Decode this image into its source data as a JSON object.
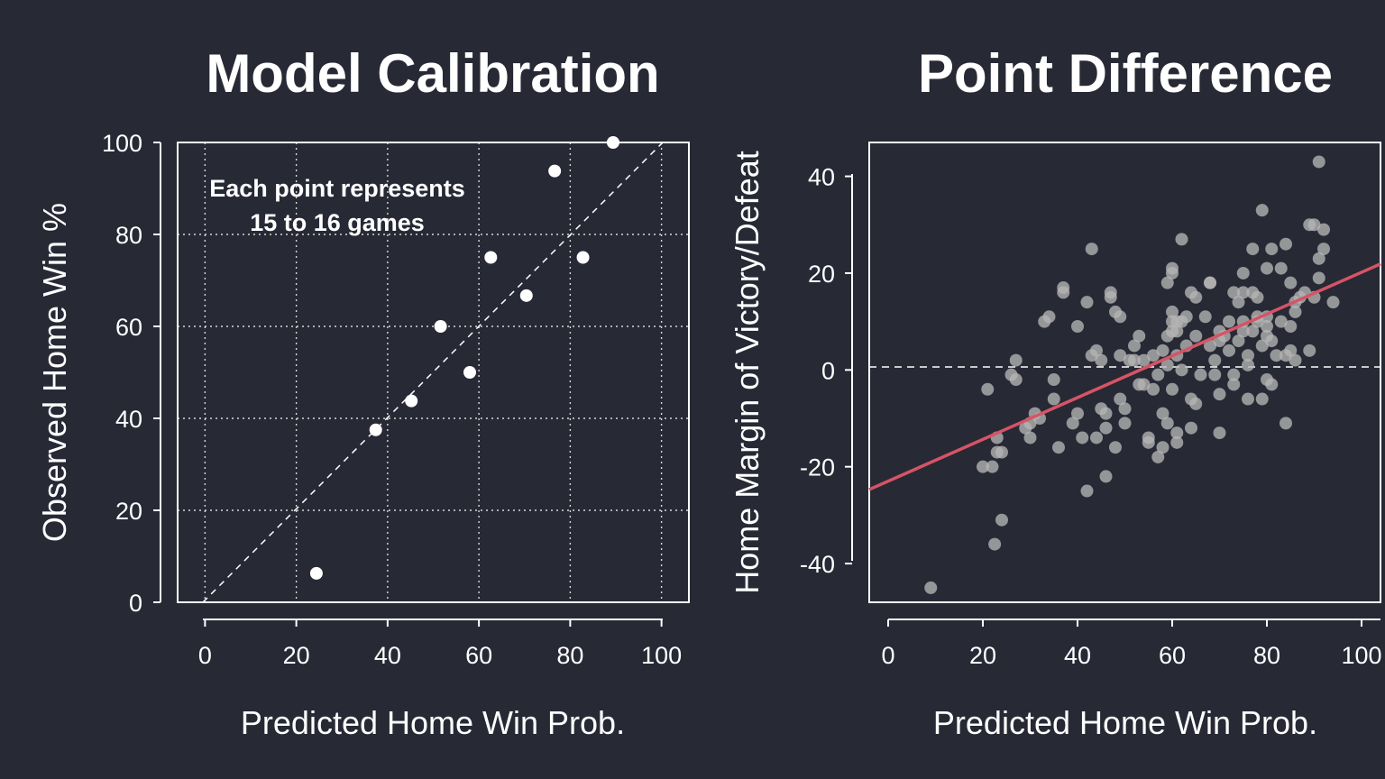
{
  "colors": {
    "background": "#272935",
    "foreground": "#ffffff",
    "scatter_points": "#b5b5b5",
    "trend_line": "#d65466"
  },
  "chart_data": [
    {
      "type": "scatter",
      "title": "Model Calibration",
      "xlabel": "Predicted Home Win Prob.",
      "ylabel": "Observed Home Win %",
      "xlim": [
        -6,
        106
      ],
      "ylim": [
        0,
        100
      ],
      "xticks": [
        0,
        20,
        40,
        60,
        80,
        100
      ],
      "yticks": [
        0,
        20,
        40,
        60,
        80,
        100
      ],
      "grid": true,
      "reference_line": "y = x (dashed)",
      "annotation": [
        "Each point represents",
        "15 to 16 games"
      ],
      "points": [
        {
          "x": 24.4,
          "y": 6.3
        },
        {
          "x": 37.4,
          "y": 37.5
        },
        {
          "x": 45.2,
          "y": 43.8
        },
        {
          "x": 51.6,
          "y": 60.0
        },
        {
          "x": 58.0,
          "y": 50.0
        },
        {
          "x": 62.6,
          "y": 75.0
        },
        {
          "x": 70.4,
          "y": 66.7
        },
        {
          "x": 76.6,
          "y": 93.8
        },
        {
          "x": 82.8,
          "y": 75.0
        },
        {
          "x": 89.4,
          "y": 100.0
        }
      ]
    },
    {
      "type": "scatter",
      "title": "Point Difference",
      "xlabel": "Predicted Home Win Prob.",
      "ylabel": "Home Margin of Victory/Defeat",
      "xlim": [
        -4,
        104
      ],
      "ylim": [
        -48,
        47
      ],
      "xticks": [
        0,
        20,
        40,
        60,
        80,
        100
      ],
      "yticks": [
        -40,
        -20,
        0,
        20,
        40
      ],
      "grid": false,
      "zero_line": "dashed",
      "trend_line": {
        "x": [
          -4,
          104
        ],
        "y": [
          -24.7,
          21.9
        ]
      },
      "points": [
        [
          9,
          -45
        ],
        [
          22.5,
          -36
        ],
        [
          24,
          -31
        ],
        [
          20,
          -20
        ],
        [
          22,
          -20
        ],
        [
          23,
          -17
        ],
        [
          24,
          -17
        ],
        [
          23,
          -14
        ],
        [
          21,
          -4
        ],
        [
          27,
          2
        ],
        [
          26,
          -1
        ],
        [
          27,
          -2
        ],
        [
          29,
          -12
        ],
        [
          30,
          -11
        ],
        [
          31,
          -9
        ],
        [
          30,
          -14
        ],
        [
          32,
          -10
        ],
        [
          33,
          10
        ],
        [
          34,
          11
        ],
        [
          35,
          -2
        ],
        [
          35,
          -6
        ],
        [
          36,
          -16
        ],
        [
          37,
          16
        ],
        [
          37,
          17
        ],
        [
          39,
          -11
        ],
        [
          40,
          9
        ],
        [
          40,
          -9
        ],
        [
          41,
          -14
        ],
        [
          42,
          -25
        ],
        [
          42,
          14
        ],
        [
          43,
          25
        ],
        [
          43,
          3
        ],
        [
          44,
          4
        ],
        [
          44,
          -14
        ],
        [
          45,
          2
        ],
        [
          45,
          -8
        ],
        [
          46,
          -9
        ],
        [
          46,
          -12
        ],
        [
          46,
          -22
        ],
        [
          47,
          15
        ],
        [
          47,
          16
        ],
        [
          48,
          12
        ],
        [
          48,
          -16
        ],
        [
          49,
          11
        ],
        [
          49,
          -6
        ],
        [
          49,
          3
        ],
        [
          50,
          -11
        ],
        [
          50,
          -8
        ],
        [
          51,
          2
        ],
        [
          52,
          2
        ],
        [
          52,
          5
        ],
        [
          53,
          -3
        ],
        [
          53,
          7
        ],
        [
          54,
          -3
        ],
        [
          54,
          2
        ],
        [
          55,
          -15
        ],
        [
          55,
          -14
        ],
        [
          56,
          3
        ],
        [
          56,
          -4
        ],
        [
          57,
          -18
        ],
        [
          57,
          -1
        ],
        [
          58,
          -9
        ],
        [
          58,
          -16
        ],
        [
          58,
          4
        ],
        [
          59,
          -11
        ],
        [
          59,
          7
        ],
        [
          59,
          1
        ],
        [
          59,
          18
        ],
        [
          60,
          12
        ],
        [
          60,
          -4
        ],
        [
          60,
          21
        ],
        [
          60,
          20
        ],
        [
          60,
          8
        ],
        [
          60,
          10
        ],
        [
          61,
          -15
        ],
        [
          61,
          8
        ],
        [
          61,
          -13
        ],
        [
          61,
          10
        ],
        [
          61,
          3
        ],
        [
          62,
          27
        ],
        [
          62,
          0
        ],
        [
          62,
          10
        ],
        [
          63,
          11
        ],
        [
          63,
          5
        ],
        [
          64,
          16
        ],
        [
          64,
          -6
        ],
        [
          64,
          -12
        ],
        [
          65,
          -7
        ],
        [
          65,
          15
        ],
        [
          65,
          7
        ],
        [
          66,
          -1
        ],
        [
          67,
          11
        ],
        [
          68,
          5
        ],
        [
          68,
          18
        ],
        [
          68,
          18
        ],
        [
          69,
          2
        ],
        [
          69,
          -1
        ],
        [
          70,
          8
        ],
        [
          70,
          -13
        ],
        [
          70,
          -5
        ],
        [
          70,
          6
        ],
        [
          71,
          7
        ],
        [
          72,
          4
        ],
        [
          72,
          10
        ],
        [
          73,
          -1
        ],
        [
          73,
          16
        ],
        [
          73,
          -3
        ],
        [
          74,
          14
        ],
        [
          74,
          6
        ],
        [
          75,
          20
        ],
        [
          75,
          16
        ],
        [
          75,
          8
        ],
        [
          75,
          10
        ],
        [
          76,
          1
        ],
        [
          76,
          -6
        ],
        [
          76,
          3
        ],
        [
          77,
          16
        ],
        [
          77,
          25
        ],
        [
          77,
          8
        ],
        [
          78,
          10
        ],
        [
          78,
          15
        ],
        [
          78,
          11
        ],
        [
          79,
          33
        ],
        [
          79,
          5
        ],
        [
          79,
          -6
        ],
        [
          80,
          7
        ],
        [
          80,
          11
        ],
        [
          80,
          -2
        ],
        [
          80,
          21
        ],
        [
          80,
          9
        ],
        [
          81,
          6
        ],
        [
          81,
          -3
        ],
        [
          81,
          25
        ],
        [
          82,
          3
        ],
        [
          83,
          21
        ],
        [
          83,
          10
        ],
        [
          84,
          -11
        ],
        [
          84,
          26
        ],
        [
          84,
          3
        ],
        [
          85,
          4
        ],
        [
          85,
          18
        ],
        [
          85,
          9
        ],
        [
          86,
          12
        ],
        [
          86,
          2
        ],
        [
          86,
          14
        ],
        [
          87,
          15
        ],
        [
          88,
          16
        ],
        [
          89,
          4
        ],
        [
          89,
          30
        ],
        [
          90,
          15
        ],
        [
          90,
          30
        ],
        [
          91,
          43
        ],
        [
          91,
          19
        ],
        [
          91,
          23
        ],
        [
          92,
          25
        ],
        [
          92,
          29
        ],
        [
          94,
          14
        ]
      ]
    }
  ]
}
